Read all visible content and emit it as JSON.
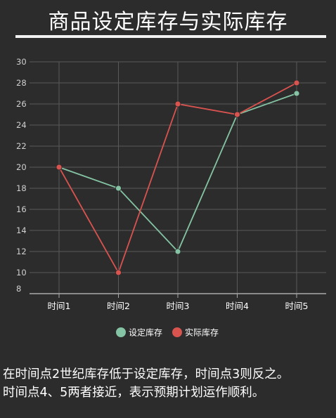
{
  "title": "商品设定库存与实际库存",
  "caption": [
    "在时间点2世纪库存低于设定库存，时间点3则反之。",
    "时间点4、5两者接近，表示预期计划运作顺利。"
  ],
  "chart_data": {
    "type": "line",
    "title": "",
    "categories": [
      "时间1",
      "时间2",
      "时间3",
      "时间4",
      "时间5"
    ],
    "series": [
      {
        "name": "设定库存",
        "color": "#84c3a3",
        "values": [
          20,
          18,
          12,
          25,
          27
        ]
      },
      {
        "name": "实际库存",
        "color": "#d9534f",
        "values": [
          20,
          10,
          26,
          25,
          28
        ]
      }
    ],
    "ylim": [
      8,
      30
    ],
    "yticks": [
      8,
      10,
      12,
      14,
      16,
      18,
      20,
      22,
      24,
      26,
      28,
      30
    ],
    "grid": true,
    "legend_position": "bottom-center",
    "axis_color": "#aaaaaa",
    "grid_color": "#5a5a5a"
  }
}
